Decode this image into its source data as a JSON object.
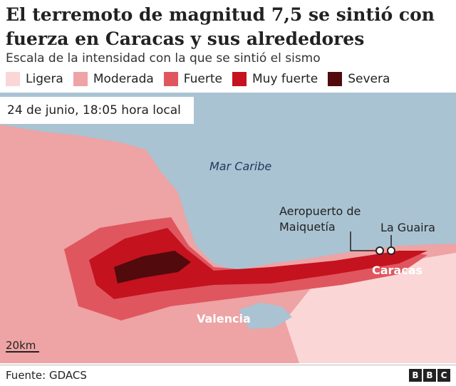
{
  "header": {
    "title": "El terremoto de magnitud 7,5 se sintió con fuerza en Caracas y sus alrededores",
    "subtitle": "Escala de la intensidad con la que se sintió el sismo"
  },
  "legend": [
    {
      "label": "Ligera",
      "color": "#fbd6d7"
    },
    {
      "label": "Moderada",
      "color": "#eea3a4"
    },
    {
      "label": "Fuerte",
      "color": "#e0565e"
    },
    {
      "label": "Muy fuerte",
      "color": "#c4121f"
    },
    {
      "label": "Severa",
      "color": "#520a0c"
    }
  ],
  "map": {
    "date": "24 de junio, 18:05 hora local",
    "labels": [
      "Mar Caribe",
      "Aeropuerto de Maiquetía",
      "La Guaira",
      "Caracas",
      "Valencia"
    ],
    "scale": "20km"
  },
  "footer": {
    "source": "Fuente: GDACS",
    "logo": [
      "B",
      "B",
      "C"
    ]
  }
}
